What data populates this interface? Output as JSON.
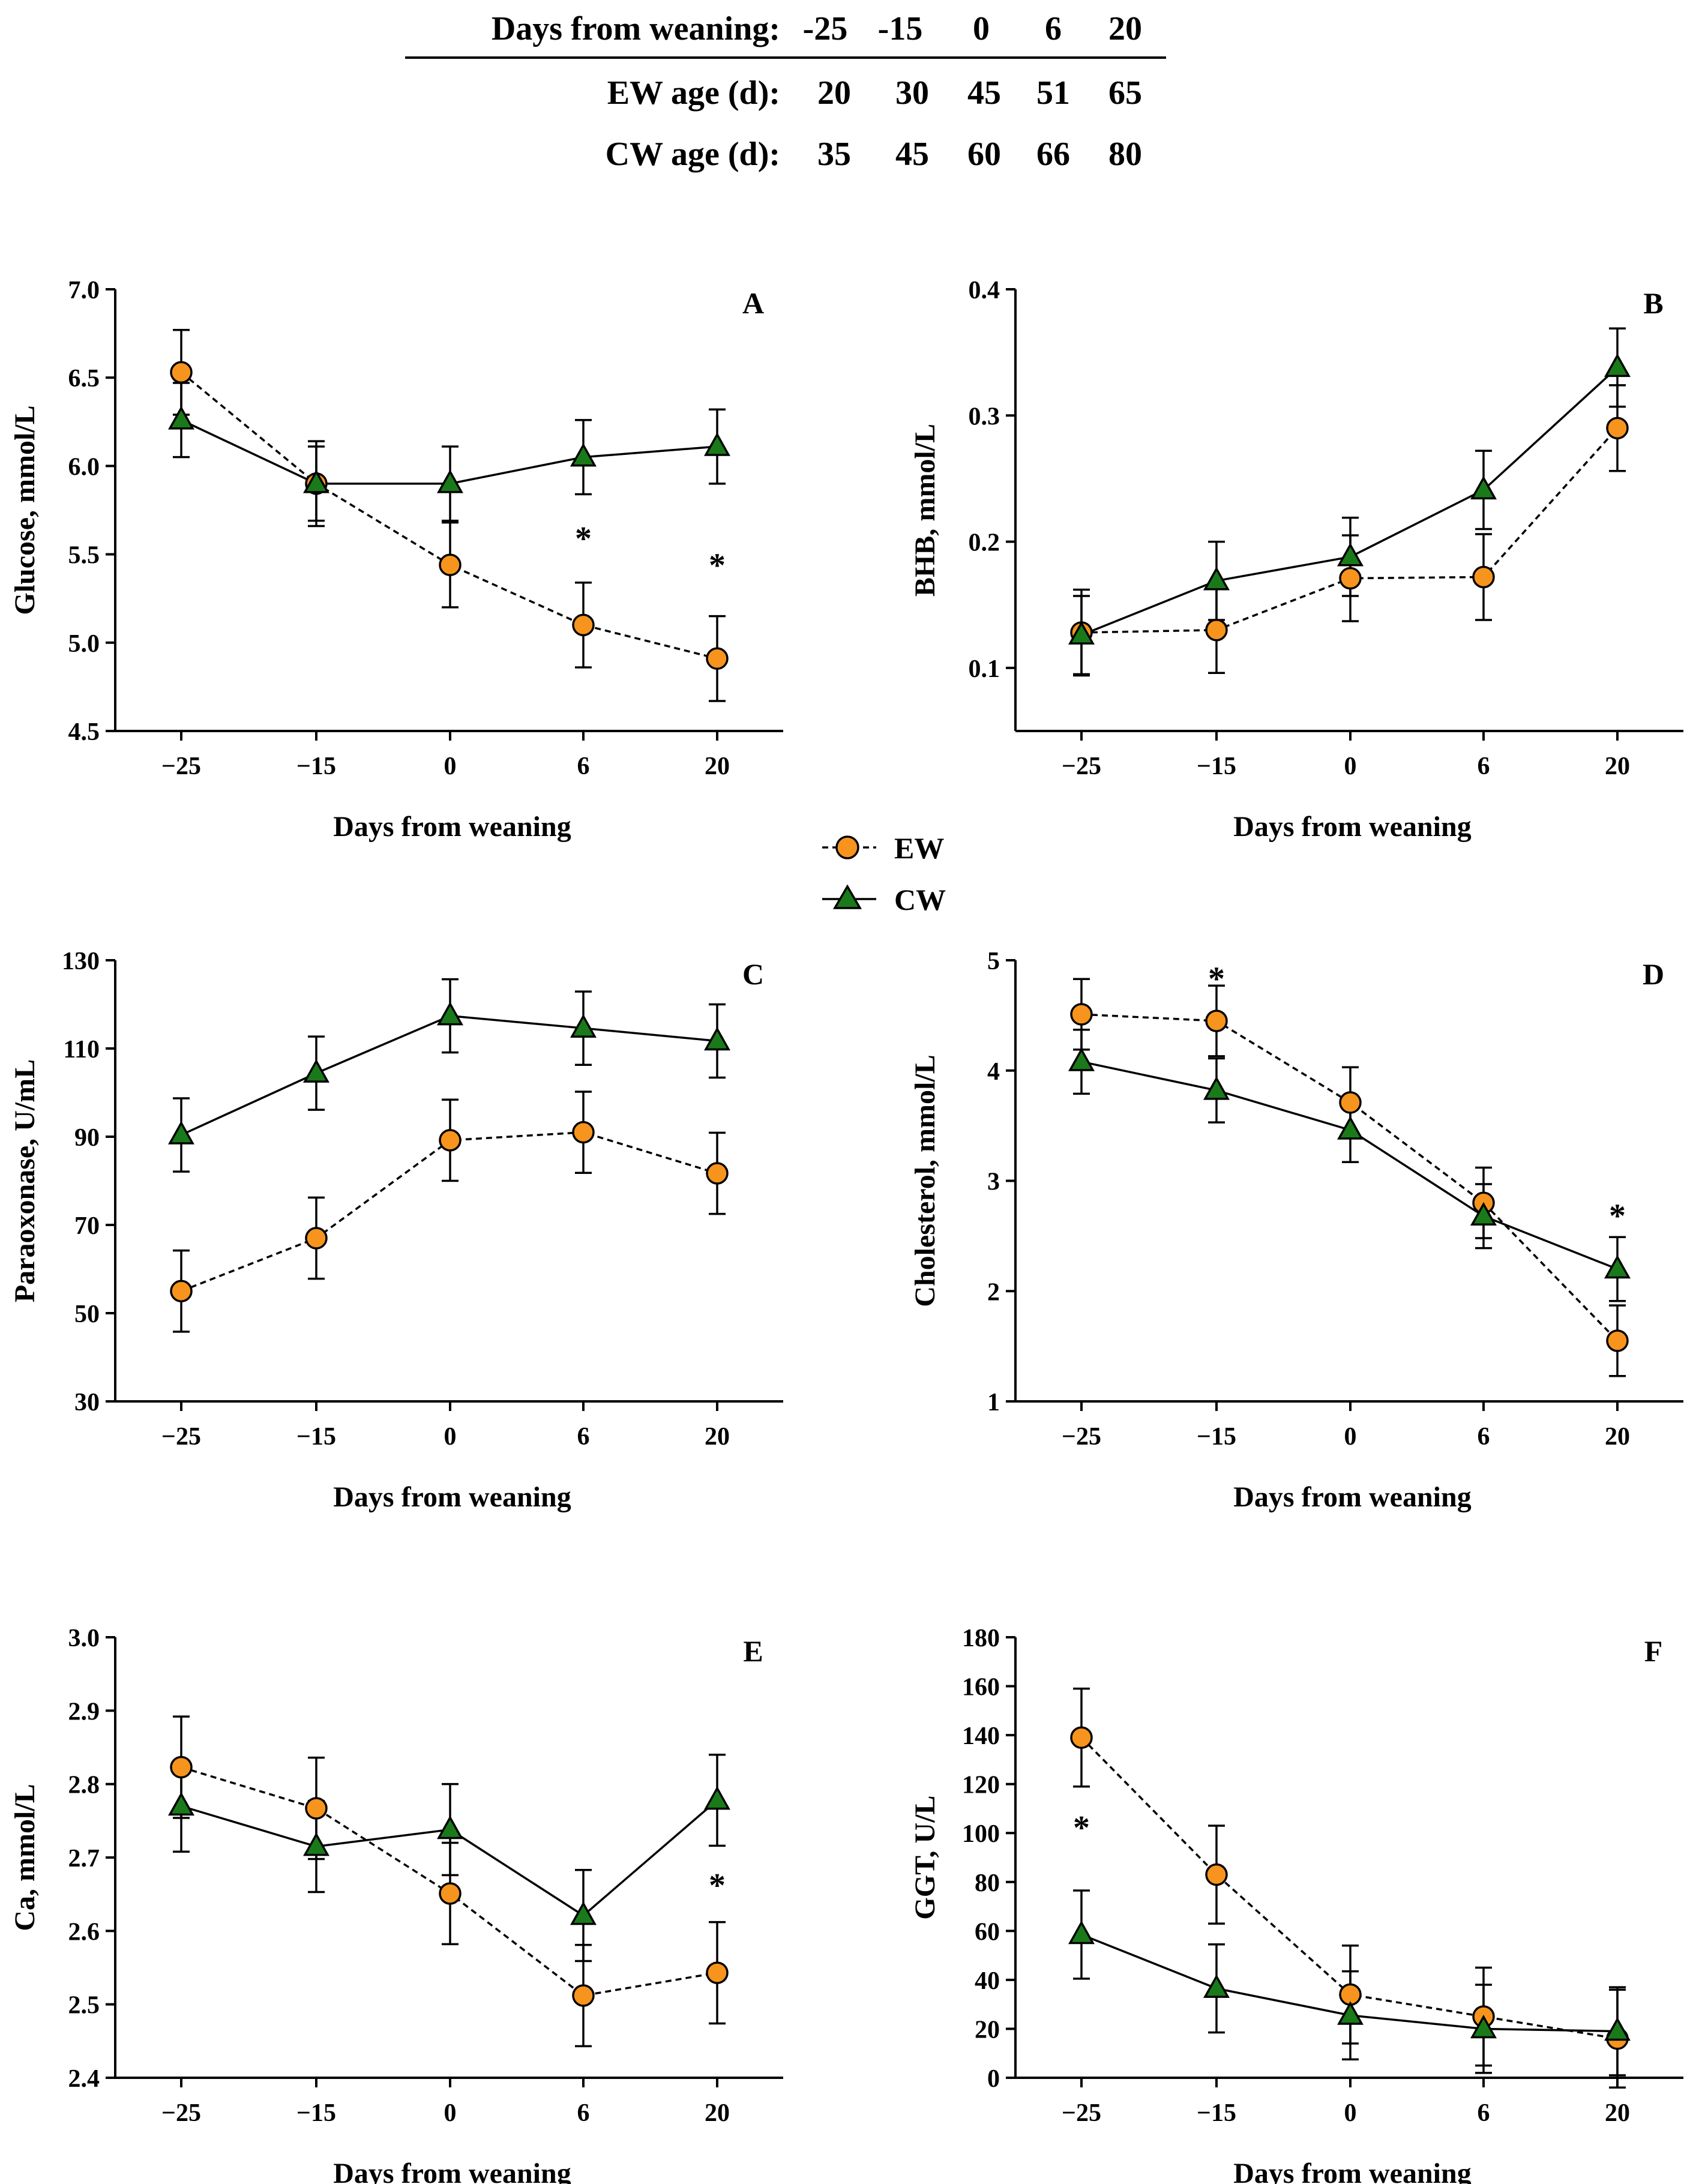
{
  "age_table": {
    "rows": [
      {
        "label": "Days from weaning:",
        "values": [
          "-25",
          "-15",
          "0",
          "6",
          "20"
        ]
      },
      {
        "label": "EW age (d):",
        "values": [
          "20",
          "30",
          "45",
          "51",
          "65"
        ]
      },
      {
        "label": "CW age (d):",
        "values": [
          "35",
          "45",
          "60",
          "66",
          "80"
        ]
      }
    ]
  },
  "legend": {
    "ew": {
      "label": "EW",
      "color": "#f7941d"
    },
    "cw": {
      "label": "CW",
      "color": "#1a7a1a"
    }
  },
  "chart_data": [
    {
      "type": "line",
      "panel": "A",
      "ylabel": "Glucose, mmol/L",
      "xlabel": "Days from weaning",
      "categories": [
        "−25",
        "−15",
        "0",
        "6",
        "20"
      ],
      "ylim": [
        4.5,
        7.0
      ],
      "yticks": [
        "4.5",
        "5.0",
        "5.5",
        "6.0",
        "6.5",
        "7.0"
      ],
      "ytick_values": [
        4.5,
        5.0,
        5.5,
        6.0,
        6.5,
        7.0
      ],
      "series": [
        {
          "name": "EW",
          "values": [
            6.53,
            5.9,
            5.44,
            5.1,
            4.91
          ],
          "err": [
            0.24,
            0.24,
            0.24,
            0.24,
            0.24
          ]
        },
        {
          "name": "CW",
          "values": [
            6.26,
            5.9,
            5.9,
            6.05,
            6.11
          ],
          "err": [
            0.21,
            0.21,
            0.21,
            0.21,
            0.21
          ]
        }
      ],
      "significance": [
        {
          "index": 3,
          "label": "*",
          "y": 5.6
        },
        {
          "index": 4,
          "label": "*",
          "y": 5.45
        }
      ]
    },
    {
      "type": "line",
      "panel": "B",
      "ylabel": "BHB, mmol/L",
      "xlabel": "Days from weaning",
      "categories": [
        "−25",
        "−15",
        "0",
        "6",
        "20"
      ],
      "ylim": [
        0.05,
        0.4
      ],
      "yticks": [
        "0.1",
        "0.2",
        "0.3",
        "0.4"
      ],
      "ytick_values": [
        0.1,
        0.2,
        0.3,
        0.4
      ],
      "series": [
        {
          "name": "EW",
          "values": [
            0.128,
            0.13,
            0.171,
            0.172,
            0.29
          ],
          "err": [
            0.034,
            0.034,
            0.034,
            0.034,
            0.034
          ]
        },
        {
          "name": "CW",
          "values": [
            0.126,
            0.169,
            0.188,
            0.241,
            0.338
          ],
          "err": [
            0.031,
            0.031,
            0.031,
            0.031,
            0.031
          ]
        }
      ],
      "significance": []
    },
    {
      "type": "line",
      "panel": "C",
      "ylabel": "Paraoxonase, U/mL",
      "xlabel": "Days from weaning",
      "categories": [
        "−25",
        "−15",
        "0",
        "6",
        "20"
      ],
      "ylim": [
        30,
        130
      ],
      "yticks": [
        "30",
        "50",
        "70",
        "90",
        "110",
        "130"
      ],
      "ytick_values": [
        30,
        50,
        70,
        90,
        110,
        130
      ],
      "series": [
        {
          "name": "EW",
          "values": [
            55,
            67,
            89.2,
            91,
            81.7
          ],
          "err": [
            9.2,
            9.2,
            9.2,
            9.2,
            9.2
          ]
        },
        {
          "name": "CW",
          "values": [
            90.4,
            104.4,
            117.4,
            114.6,
            111.7
          ],
          "err": [
            8.3,
            8.3,
            8.3,
            8.3,
            8.3
          ]
        }
      ],
      "significance": []
    },
    {
      "type": "line",
      "panel": "D",
      "ylabel": "Cholesterol, mmol/L",
      "xlabel": "Days from weaning",
      "categories": [
        "−25",
        "−15",
        "0",
        "6",
        "20"
      ],
      "ylim": [
        1,
        5
      ],
      "yticks": [
        "1",
        "2",
        "3",
        "4",
        "5"
      ],
      "ytick_values": [
        1,
        2,
        3,
        4,
        5
      ],
      "series": [
        {
          "name": "EW",
          "values": [
            4.51,
            4.45,
            3.71,
            2.8,
            1.55
          ],
          "err": [
            0.32,
            0.32,
            0.32,
            0.32,
            0.32
          ]
        },
        {
          "name": "CW",
          "values": [
            4.08,
            3.82,
            3.46,
            2.68,
            2.2
          ],
          "err": [
            0.29,
            0.29,
            0.29,
            0.29,
            0.29
          ]
        }
      ],
      "significance": [
        {
          "index": 1,
          "label": "*",
          "y": 4.85
        },
        {
          "index": 4,
          "label": "*",
          "y": 2.7
        }
      ]
    },
    {
      "type": "line",
      "panel": "E",
      "ylabel": "Ca, mmol/L",
      "xlabel": "Days from weaning",
      "categories": [
        "−25",
        "−15",
        "0",
        "6",
        "20"
      ],
      "ylim": [
        2.4,
        3.0
      ],
      "yticks": [
        "2.4",
        "2.5",
        "2.6",
        "2.7",
        "2.8",
        "2.9",
        "3.0"
      ],
      "ytick_values": [
        2.4,
        2.5,
        2.6,
        2.7,
        2.8,
        2.9,
        3.0
      ],
      "series": [
        {
          "name": "EW",
          "values": [
            2.823,
            2.767,
            2.651,
            2.512,
            2.543
          ],
          "err": [
            0.069,
            0.069,
            0.069,
            0.069,
            0.069
          ]
        },
        {
          "name": "CW",
          "values": [
            2.77,
            2.715,
            2.738,
            2.621,
            2.778
          ],
          "err": [
            0.062,
            0.062,
            0.062,
            0.062,
            0.062
          ]
        }
      ],
      "significance": [
        {
          "index": 4,
          "label": "*",
          "y": 2.665
        }
      ]
    },
    {
      "type": "line",
      "panel": "F",
      "ylabel": "GGT, U/L",
      "xlabel": "Days from weaning",
      "categories": [
        "−25",
        "−15",
        "0",
        "6",
        "20"
      ],
      "ylim": [
        0,
        180
      ],
      "yticks": [
        "0",
        "20",
        "40",
        "60",
        "80",
        "100",
        "120",
        "140",
        "160",
        "180"
      ],
      "ytick_values": [
        0,
        20,
        40,
        60,
        80,
        100,
        120,
        140,
        160,
        180
      ],
      "series": [
        {
          "name": "EW",
          "values": [
            139,
            83,
            34,
            25,
            16
          ],
          "err": [
            20,
            20,
            20,
            20,
            20
          ]
        },
        {
          "name": "CW",
          "values": [
            58.5,
            36.5,
            25.5,
            20,
            19
          ],
          "err": [
            18,
            18,
            18,
            18,
            18
          ]
        }
      ],
      "significance": [
        {
          "index": 0,
          "label": "*",
          "y": 103
        }
      ]
    }
  ]
}
